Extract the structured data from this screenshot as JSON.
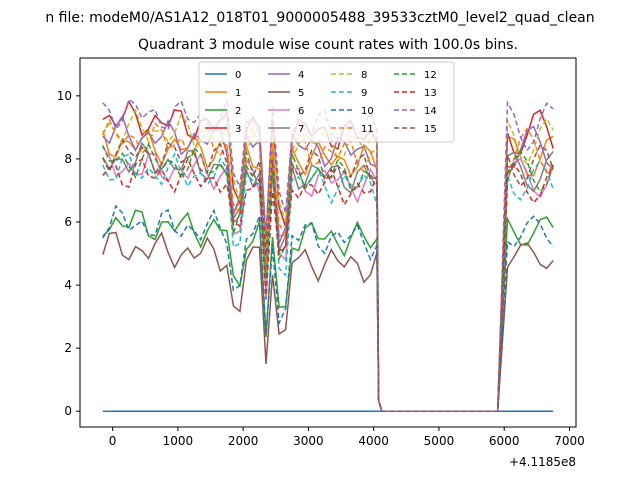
{
  "chart_data": {
    "type": "line",
    "suptitle": "n file: modeM0/AS1A12_018T01_9000005488_39533cztM0_level2_quad_clean",
    "title": "Quadrant 3 module wise count rates with 100.0s bins.",
    "xlabel": "",
    "ylabel": "",
    "x_offset_label": "+4.1185e8",
    "xlim": [
      -500,
      7100
    ],
    "ylim": [
      -0.5,
      11.2
    ],
    "xticks": [
      0,
      1000,
      2000,
      3000,
      4000,
      5000,
      6000,
      7000
    ],
    "xtick_labels": [
      "0",
      "1000",
      "2000",
      "3000",
      "4000",
      "5000",
      "6000",
      "7000"
    ],
    "yticks": [
      0,
      2,
      4,
      6,
      8,
      10
    ],
    "ytick_labels": [
      "0",
      "2",
      "4",
      "6",
      "8",
      "10"
    ],
    "grid": false,
    "legend_placement": "top-center",
    "series": [
      {
        "name": "0",
        "color": "#1f77b4",
        "dash": "solid",
        "base": 0,
        "phase": 0
      },
      {
        "name": "1",
        "color": "#ff7f0e",
        "dash": "solid",
        "base": 8.5,
        "phase": 1
      },
      {
        "name": "2",
        "color": "#2ca02c",
        "dash": "solid",
        "base": 6.0,
        "phase": 2
      },
      {
        "name": "3",
        "color": "#d62728",
        "dash": "solid",
        "base": 9.3,
        "phase": 3
      },
      {
        "name": "4",
        "color": "#9467bd",
        "dash": "solid",
        "base": 8.8,
        "phase": 4
      },
      {
        "name": "5",
        "color": "#8c564b",
        "dash": "solid",
        "base": 5.2,
        "phase": 5
      },
      {
        "name": "6",
        "color": "#e377c2",
        "dash": "solid",
        "base": 7.8,
        "phase": 6
      },
      {
        "name": "7",
        "color": "#7f7f7f",
        "dash": "solid",
        "base": 8.0,
        "phase": 7
      },
      {
        "name": "8",
        "color": "#bcbd22",
        "dash": "dashed",
        "base": 9.0,
        "phase": 8
      },
      {
        "name": "9",
        "color": "#17becf",
        "dash": "dashed",
        "base": 7.7,
        "phase": 9
      },
      {
        "name": "10",
        "color": "#1f77b4",
        "dash": "dashed",
        "base": 6.0,
        "phase": 10
      },
      {
        "name": "11",
        "color": "#ff7f0e",
        "dash": "dashed",
        "base": 8.7,
        "phase": 11
      },
      {
        "name": "12",
        "color": "#2ca02c",
        "dash": "dashed",
        "base": 8.0,
        "phase": 12
      },
      {
        "name": "13",
        "color": "#d62728",
        "dash": "dashed",
        "base": 7.6,
        "phase": 13
      },
      {
        "name": "14",
        "color": "#9467bd",
        "dash": "dashed",
        "base": 9.5,
        "phase": 14
      },
      {
        "name": "15",
        "color": "#8c564b",
        "dash": "dashed",
        "base": 8.2,
        "phase": 15
      }
    ],
    "time_x": [
      -150,
      4075,
      4125,
      5950,
      6050,
      6750
    ],
    "notes_shape": "counts fall to ~0 between 4100 and 5950 then recover"
  }
}
